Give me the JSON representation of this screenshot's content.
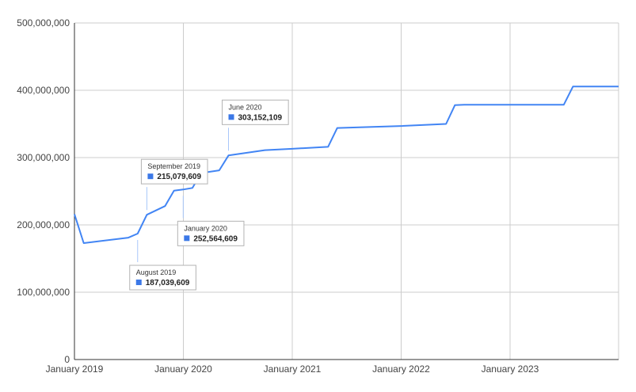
{
  "chart_data": {
    "type": "line",
    "title": "",
    "xlabel": "",
    "ylabel": "",
    "x_ticks": [
      "January 2019",
      "January 2020",
      "January 2021",
      "January 2022",
      "January 2023"
    ],
    "y_ticks": [
      "0",
      "100,000,000",
      "200,000,000",
      "300,000,000",
      "400,000,000",
      "500,000,000"
    ],
    "ylim": [
      0,
      500000000
    ],
    "xlim": [
      "2019-01-01",
      "2024-01-01"
    ],
    "grid": true,
    "series_color": "#4285f4",
    "series": [
      {
        "points": [
          {
            "x": "2019-01-01",
            "y": 216000000
          },
          {
            "x": "2019-02-01",
            "y": 173000000
          },
          {
            "x": "2019-07-01",
            "y": 181000000
          },
          {
            "x": "2019-08-01",
            "y": 187039609
          },
          {
            "x": "2019-09-01",
            "y": 215079609
          },
          {
            "x": "2019-11-01",
            "y": 228000000
          },
          {
            "x": "2019-12-01",
            "y": 251000000
          },
          {
            "x": "2020-01-01",
            "y": 252564609
          },
          {
            "x": "2020-02-01",
            "y": 255000000
          },
          {
            "x": "2020-03-01",
            "y": 277000000
          },
          {
            "x": "2020-05-01",
            "y": 281000000
          },
          {
            "x": "2020-06-01",
            "y": 303152109
          },
          {
            "x": "2020-10-01",
            "y": 311000000
          },
          {
            "x": "2021-01-01",
            "y": 313000000
          },
          {
            "x": "2021-05-01",
            "y": 316000000
          },
          {
            "x": "2021-06-01",
            "y": 344000000
          },
          {
            "x": "2022-01-01",
            "y": 347000000
          },
          {
            "x": "2022-06-01",
            "y": 350000000
          },
          {
            "x": "2022-07-01",
            "y": 378000000
          },
          {
            "x": "2022-08-01",
            "y": 378500000
          },
          {
            "x": "2023-07-01",
            "y": 378500000
          },
          {
            "x": "2023-08-01",
            "y": 405500000
          },
          {
            "x": "2024-01-01",
            "y": 405500000
          }
        ]
      }
    ],
    "annotations": [
      {
        "date_label": "August 2019",
        "value_label": "187,039,609",
        "x": "2019-08-01",
        "y": 187039609
      },
      {
        "date_label": "September 2019",
        "value_label": "215,079,609",
        "x": "2019-09-01",
        "y": 215079609
      },
      {
        "date_label": "January 2020",
        "value_label": "252,564,609",
        "x": "2020-01-01",
        "y": 252564609
      },
      {
        "date_label": "June 2020",
        "value_label": "303,152,109",
        "x": "2020-06-01",
        "y": 303152109
      }
    ]
  }
}
